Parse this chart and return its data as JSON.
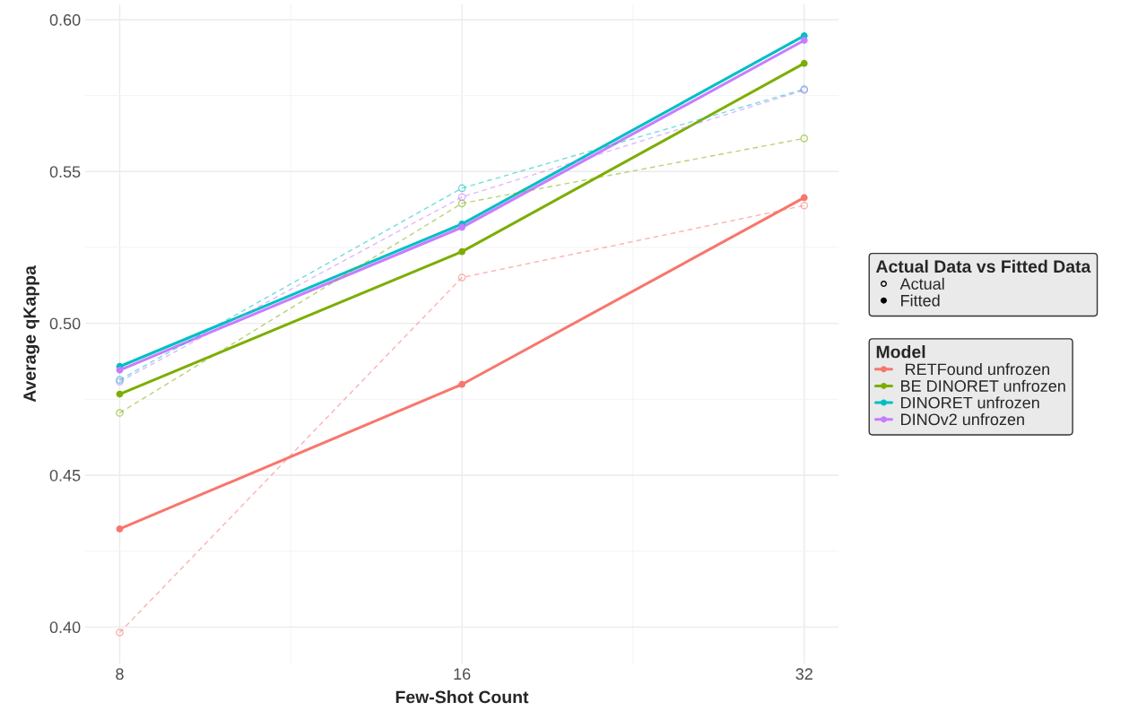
{
  "chart_data": {
    "type": "line",
    "xlabel": "Few-Shot Count",
    "ylabel": "Average qKappa",
    "legend_title": "Model",
    "annotations": [
      "Actual Data vs Fitted Data",
      "Actual",
      "Fitted"
    ],
    "x": [
      8,
      16,
      32
    ],
    "log": "x",
    "xlim": [
      7.46,
      34.3
    ],
    "xticks": [
      8,
      16,
      32
    ],
    "ylim": [
      0.388,
      0.605
    ],
    "yticks": [
      {
        "value": 0.4,
        "label": "0.40"
      },
      {
        "value": 0.45,
        "label": "0.45"
      },
      {
        "value": 0.5,
        "label": "0.50"
      },
      {
        "value": 0.55,
        "label": "0.55"
      },
      {
        "value": 0.6,
        "label": "0.60"
      }
    ],
    "grid": true,
    "legend": "right",
    "marker": "circle",
    "series": [
      {
        "name": " RETFound unfrozen",
        "color": "#f8766d",
        "line_style": "solid",
        "values": [
          0.4323,
          0.4799,
          0.5414
        ]
      },
      {
        "name": "BE DINORET unfrozen",
        "color": "#7cae00",
        "line_style": "solid",
        "values": [
          0.4767,
          0.5236,
          0.5856
        ]
      },
      {
        "name": "DINORET unfrozen",
        "color": "#00bfc4",
        "line_style": "solid",
        "values": [
          0.4858,
          0.5327,
          0.5947
        ]
      },
      {
        "name": "DINOv2 unfrozen",
        "color": "#c77cff",
        "line_style": "solid",
        "values": [
          0.4846,
          0.5316,
          0.5932
        ]
      },
      {
        "color": "#f8766d",
        "line_style": "dashed",
        "values": [
          0.3982,
          0.5151,
          0.5388
        ]
      },
      {
        "color": "#7cae00",
        "line_style": "dashed",
        "values": [
          0.4705,
          0.5395,
          0.5609
        ]
      },
      {
        "color": "#00bfc4",
        "line_style": "dashed",
        "values": [
          0.4814,
          0.5445,
          0.5771
        ]
      },
      {
        "color": "#c77cff",
        "line_style": "dashed",
        "values": [
          0.4808,
          0.5416,
          0.5768
        ]
      }
    ]
  }
}
